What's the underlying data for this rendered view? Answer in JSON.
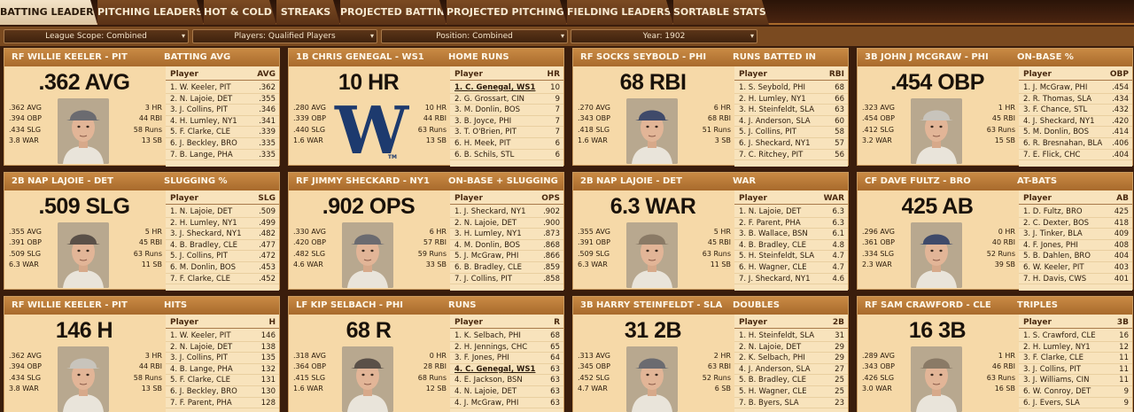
{
  "tabs": [
    {
      "label": "BATTING LEADERS",
      "active": true
    },
    {
      "label": "PITCHING LEADERS",
      "active": false
    },
    {
      "label": "HOT & COLD",
      "active": false
    },
    {
      "label": "STREAKS",
      "active": false
    },
    {
      "label": "PROJECTED BATTING",
      "active": false
    },
    {
      "label": "PROJECTED PITCHING",
      "active": false
    },
    {
      "label": "FIELDING LEADERS",
      "active": false
    },
    {
      "label": "SORTABLE STATS",
      "active": false
    }
  ],
  "filters": [
    {
      "label": "League Scope: Combined"
    },
    {
      "label": "Players: Qualified Players"
    },
    {
      "label": "Position: Combined"
    },
    {
      "label": "Year: 1902"
    }
  ],
  "cards": [
    {
      "leader": "RF WILLIE KEELER - PIT",
      "category": "BATTING AVG",
      "big": ".362 AVG",
      "image": "photo",
      "left_stats": [
        ".362 AVG",
        ".394 OBP",
        ".434 SLG",
        "3.8 WAR"
      ],
      "right_stats": [
        "3 HR",
        "44 RBI",
        "58 Runs",
        "13 SB"
      ],
      "col_player": "Player",
      "col_stat": "AVG",
      "rows": [
        {
          "name": "1. W. Keeler, PIT",
          "value": ".362"
        },
        {
          "name": "2. N. Lajoie, DET",
          "value": ".355"
        },
        {
          "name": "3. J. Collins, PIT",
          "value": ".346"
        },
        {
          "name": "4. H. Lumley, NY1",
          "value": ".341"
        },
        {
          "name": "5. F. Clarke, CLE",
          "value": ".339"
        },
        {
          "name": "6. J. Beckley, BRO",
          "value": ".335"
        },
        {
          "name": "7. B. Lange, PHA",
          "value": ".335"
        }
      ]
    },
    {
      "leader": "1B CHRIS GENEGAL - WS1",
      "category": "HOME RUNS",
      "big": "10 HR",
      "image": "logo",
      "logo_letter": "W",
      "logo_mark": "TM",
      "left_stats": [
        ".280 AVG",
        ".339 OBP",
        ".440 SLG",
        "1.6 WAR"
      ],
      "right_stats": [
        "10 HR",
        "44 RBI",
        "63 Runs",
        "13 SB"
      ],
      "col_player": "Player",
      "col_stat": "HR",
      "rows": [
        {
          "name": "1. C. Genegal, WS1",
          "value": "10",
          "hl": true
        },
        {
          "name": "2. G. Grossart, CIN",
          "value": "9"
        },
        {
          "name": "3. M. Donlin, BOS",
          "value": "7"
        },
        {
          "name": "3. B. Joyce, PHI",
          "value": "7"
        },
        {
          "name": "3. T. O'Brien, PIT",
          "value": "7"
        },
        {
          "name": "6. H. Meek, PIT",
          "value": "6"
        },
        {
          "name": "6. B. Schils, STL",
          "value": "6"
        }
      ]
    },
    {
      "leader": "RF SOCKS SEYBOLD - PHI",
      "category": "RUNS BATTED IN",
      "big": "68 RBI",
      "image": "photo",
      "left_stats": [
        ".270 AVG",
        ".343 OBP",
        ".418 SLG",
        "1.6 WAR"
      ],
      "right_stats": [
        "6 HR",
        "68 RBI",
        "51 Runs",
        "3 SB"
      ],
      "col_player": "Player",
      "col_stat": "RBI",
      "rows": [
        {
          "name": "1. S. Seybold, PHI",
          "value": "68"
        },
        {
          "name": "2. H. Lumley, NY1",
          "value": "66"
        },
        {
          "name": "3. H. Steinfeldt, SLA",
          "value": "63"
        },
        {
          "name": "4. J. Anderson, SLA",
          "value": "60"
        },
        {
          "name": "5. J. Collins, PIT",
          "value": "58"
        },
        {
          "name": "6. J. Sheckard, NY1",
          "value": "57"
        },
        {
          "name": "7. C. Ritchey, PIT",
          "value": "56"
        }
      ]
    },
    {
      "leader": "3B JOHN J MCGRAW - PHI",
      "category": "ON-BASE %",
      "big": ".454 OBP",
      "image": "photo",
      "left_stats": [
        ".323 AVG",
        ".454 OBP",
        ".412 SLG",
        "3.2 WAR"
      ],
      "right_stats": [
        "1 HR",
        "45 RBI",
        "63 Runs",
        "15 SB"
      ],
      "col_player": "Player",
      "col_stat": "OBP",
      "rows": [
        {
          "name": "1. J. McGraw, PHI",
          "value": ".454"
        },
        {
          "name": "2. R. Thomas, SLA",
          "value": ".434"
        },
        {
          "name": "3. F. Chance, STL",
          "value": ".432"
        },
        {
          "name": "4. J. Sheckard, NY1",
          "value": ".420"
        },
        {
          "name": "5. M. Donlin, BOS",
          "value": ".414"
        },
        {
          "name": "6. R. Bresnahan, BLA",
          "value": ".406"
        },
        {
          "name": "7. E. Flick, CHC",
          "value": ".404"
        }
      ]
    },
    {
      "leader": "2B NAP LAJOIE - DET",
      "category": "SLUGGING %",
      "big": ".509 SLG",
      "image": "photo",
      "left_stats": [
        ".355 AVG",
        ".391 OBP",
        ".509 SLG",
        "6.3 WAR"
      ],
      "right_stats": [
        "5 HR",
        "45 RBI",
        "63 Runs",
        "11 SB"
      ],
      "col_player": "Player",
      "col_stat": "SLG",
      "rows": [
        {
          "name": "1. N. Lajoie, DET",
          "value": ".509"
        },
        {
          "name": "2. H. Lumley, NY1",
          "value": ".499"
        },
        {
          "name": "3. J. Sheckard, NY1",
          "value": ".482"
        },
        {
          "name": "4. B. Bradley, CLE",
          "value": ".477"
        },
        {
          "name": "5. J. Collins, PIT",
          "value": ".472"
        },
        {
          "name": "6. M. Donlin, BOS",
          "value": ".453"
        },
        {
          "name": "7. F. Clarke, CLE",
          "value": ".452"
        }
      ]
    },
    {
      "leader": "RF JIMMY SHECKARD - NY1",
      "category": "ON-BASE + SLUGGING",
      "big": ".902 OPS",
      "image": "photo",
      "left_stats": [
        ".330 AVG",
        ".420 OBP",
        ".482 SLG",
        "4.6 WAR"
      ],
      "right_stats": [
        "6 HR",
        "57 RBI",
        "59 Runs",
        "33 SB"
      ],
      "col_player": "Player",
      "col_stat": "OPS",
      "rows": [
        {
          "name": "1. J. Sheckard, NY1",
          "value": ".902"
        },
        {
          "name": "2. N. Lajoie, DET",
          "value": ".900"
        },
        {
          "name": "3. H. Lumley, NY1",
          "value": ".873"
        },
        {
          "name": "4. M. Donlin, BOS",
          "value": ".868"
        },
        {
          "name": "5. J. McGraw, PHI",
          "value": ".866"
        },
        {
          "name": "6. B. Bradley, CLE",
          "value": ".859"
        },
        {
          "name": "7. J. Collins, PIT",
          "value": ".858"
        }
      ]
    },
    {
      "leader": "2B NAP LAJOIE - DET",
      "category": "WAR",
      "big": "6.3 WAR",
      "image": "photo",
      "left_stats": [
        ".355 AVG",
        ".391 OBP",
        ".509 SLG",
        "6.3 WAR"
      ],
      "right_stats": [
        "5 HR",
        "45 RBI",
        "63 Runs",
        "11 SB"
      ],
      "col_player": "Player",
      "col_stat": "WAR",
      "rows": [
        {
          "name": "1. N. Lajoie, DET",
          "value": "6.3"
        },
        {
          "name": "2. F. Parent, PHA",
          "value": "6.3"
        },
        {
          "name": "3. B. Wallace, BSN",
          "value": "6.1"
        },
        {
          "name": "4. B. Bradley, CLE",
          "value": "4.8"
        },
        {
          "name": "5. H. Steinfeldt, SLA",
          "value": "4.7"
        },
        {
          "name": "6. H. Wagner, CLE",
          "value": "4.7"
        },
        {
          "name": "7. J. Sheckard, NY1",
          "value": "4.6"
        }
      ]
    },
    {
      "leader": "CF DAVE FULTZ - BRO",
      "category": "AT-BATS",
      "big": "425 AB",
      "image": "photo",
      "left_stats": [
        ".296 AVG",
        ".361 OBP",
        ".334 SLG",
        "2.3 WAR"
      ],
      "right_stats": [
        "0 HR",
        "40 RBI",
        "52 Runs",
        "39 SB"
      ],
      "col_player": "Player",
      "col_stat": "AB",
      "rows": [
        {
          "name": "1. D. Fultz, BRO",
          "value": "425"
        },
        {
          "name": "2. C. Dexter, BOS",
          "value": "418"
        },
        {
          "name": "3. J. Tinker, BLA",
          "value": "409"
        },
        {
          "name": "4. F. Jones, PHI",
          "value": "408"
        },
        {
          "name": "5. B. Dahlen, BRO",
          "value": "404"
        },
        {
          "name": "6. W. Keeler, PIT",
          "value": "403"
        },
        {
          "name": "7. H. Davis, CWS",
          "value": "401"
        }
      ]
    },
    {
      "leader": "RF WILLIE KEELER - PIT",
      "category": "HITS",
      "big": "146 H",
      "image": "photo",
      "left_stats": [
        ".362 AVG",
        ".394 OBP",
        ".434 SLG",
        "3.8 WAR"
      ],
      "right_stats": [
        "3 HR",
        "44 RBI",
        "58 Runs",
        "13 SB"
      ],
      "col_player": "Player",
      "col_stat": "H",
      "rows": [
        {
          "name": "1. W. Keeler, PIT",
          "value": "146"
        },
        {
          "name": "2. N. Lajoie, DET",
          "value": "138"
        },
        {
          "name": "3. J. Collins, PIT",
          "value": "135"
        },
        {
          "name": "4. B. Lange, PHA",
          "value": "132"
        },
        {
          "name": "5. F. Clarke, CLE",
          "value": "131"
        },
        {
          "name": "6. J. Beckley, BRO",
          "value": "130"
        },
        {
          "name": "7. F. Parent, PHA",
          "value": "128"
        }
      ]
    },
    {
      "leader": "LF KIP SELBACH - PHI",
      "category": "RUNS",
      "big": "68 R",
      "image": "photo",
      "left_stats": [
        ".318 AVG",
        ".364 OBP",
        ".415 SLG",
        "1.6 WAR"
      ],
      "right_stats": [
        "0 HR",
        "28 RBI",
        "68 Runs",
        "12 SB"
      ],
      "col_player": "Player",
      "col_stat": "R",
      "rows": [
        {
          "name": "1. K. Selbach, PHI",
          "value": "68"
        },
        {
          "name": "2. H. Jennings, CHC",
          "value": "65"
        },
        {
          "name": "3. F. Jones, PHI",
          "value": "64"
        },
        {
          "name": "4. C. Genegal, WS1",
          "value": "63",
          "hl": true
        },
        {
          "name": "4. E. Jackson, BSN",
          "value": "63"
        },
        {
          "name": "4. N. Lajoie, DET",
          "value": "63"
        },
        {
          "name": "4. J. McGraw, PHI",
          "value": "63"
        }
      ]
    },
    {
      "leader": "3B HARRY STEINFELDT - SLA",
      "category": "DOUBLES",
      "big": "31 2B",
      "image": "photo",
      "left_stats": [
        ".313 AVG",
        ".345 OBP",
        ".452 SLG",
        "4.7 WAR"
      ],
      "right_stats": [
        "2 HR",
        "63 RBI",
        "52 Runs",
        "6 SB"
      ],
      "col_player": "Player",
      "col_stat": "2B",
      "rows": [
        {
          "name": "1. H. Steinfeldt, SLA",
          "value": "31"
        },
        {
          "name": "2. N. Lajoie, DET",
          "value": "29"
        },
        {
          "name": "2. K. Selbach, PHI",
          "value": "29"
        },
        {
          "name": "4. J. Anderson, SLA",
          "value": "27"
        },
        {
          "name": "5. B. Bradley, CLE",
          "value": "25"
        },
        {
          "name": "5. H. Wagner, CLE",
          "value": "25"
        },
        {
          "name": "7. B. Byers, SLA",
          "value": "23"
        }
      ]
    },
    {
      "leader": "RF SAM CRAWFORD - CLE",
      "category": "TRIPLES",
      "big": "16 3B",
      "image": "photo",
      "left_stats": [
        ".289 AVG",
        ".343 OBP",
        ".426 SLG",
        "3.0 WAR"
      ],
      "right_stats": [
        "1 HR",
        "46 RBI",
        "63 Runs",
        "16 SB"
      ],
      "col_player": "Player",
      "col_stat": "3B",
      "rows": [
        {
          "name": "1. S. Crawford, CLE",
          "value": "16"
        },
        {
          "name": "2. H. Lumley, NY1",
          "value": "12"
        },
        {
          "name": "3. F. Clarke, CLE",
          "value": "11"
        },
        {
          "name": "3. J. Collins, PIT",
          "value": "11"
        },
        {
          "name": "3. J. Williams, CIN",
          "value": "11"
        },
        {
          "name": "6. W. Conroy, DET",
          "value": "9"
        },
        {
          "name": "6. J. Evers, SLA",
          "value": "9"
        }
      ]
    }
  ]
}
